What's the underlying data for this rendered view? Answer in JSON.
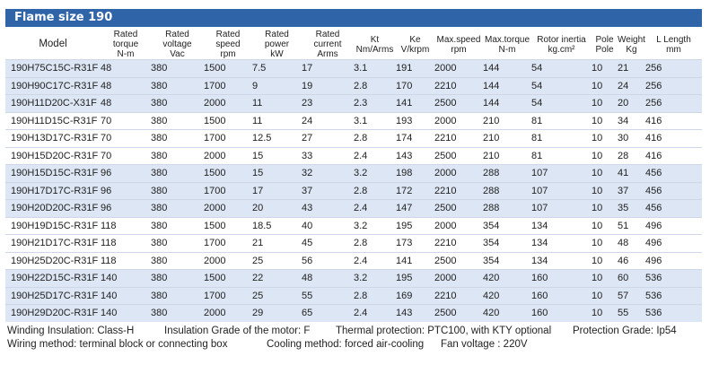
{
  "title": "Flame size 190",
  "columns": [
    {
      "l1": "Model",
      "l2": ""
    },
    {
      "l1": "Rated torque",
      "l2": "N-m"
    },
    {
      "l1": "Rated voltage",
      "l2": "Vac"
    },
    {
      "l1": "Rated speed",
      "l2": "rpm"
    },
    {
      "l1": "Rated power",
      "l2": "kW"
    },
    {
      "l1": "Rated current",
      "l2": "Arms"
    },
    {
      "l1": "Kt",
      "l2": "Nm/Arms"
    },
    {
      "l1": "Ke",
      "l2": "V/krpm"
    },
    {
      "l1": "Max.speed",
      "l2": "rpm"
    },
    {
      "l1": "Max.torque",
      "l2": "N-m"
    },
    {
      "l1": "Rotor inertia",
      "l2": "kg.cm²"
    },
    {
      "l1": "Pole",
      "l2": "Pole"
    },
    {
      "l1": "Weight",
      "l2": "Kg"
    },
    {
      "l1": "L Length",
      "l2": "mm"
    }
  ],
  "rows": [
    [
      "190H75C15C-R31F",
      "48",
      "380",
      "1500",
      "7.5",
      "17",
      "3.1",
      "191",
      "2000",
      "144",
      "54",
      "10",
      "21",
      "256"
    ],
    [
      "190H90C17C-R31F",
      "48",
      "380",
      "1700",
      "9",
      "19",
      "2.8",
      "170",
      "2210",
      "144",
      "54",
      "10",
      "24",
      "256"
    ],
    [
      "190H11D20C-X31F",
      "48",
      "380",
      "2000",
      "11",
      "23",
      "2.3",
      "141",
      "2500",
      "144",
      "54",
      "10",
      "20",
      "256"
    ],
    [
      "190H11D15C-R31F",
      "70",
      "380",
      "1500",
      "11",
      "24",
      "3.1",
      "193",
      "2000",
      "210",
      "81",
      "10",
      "34",
      "416"
    ],
    [
      "190H13D17C-R31F",
      "70",
      "380",
      "1700",
      "12.5",
      "27",
      "2.8",
      "174",
      "2210",
      "210",
      "81",
      "10",
      "30",
      "416"
    ],
    [
      "190H15D20C-R31F",
      "70",
      "380",
      "2000",
      "15",
      "33",
      "2.4",
      "143",
      "2500",
      "210",
      "81",
      "10",
      "28",
      "416"
    ],
    [
      "190H15D15C-R31F",
      "96",
      "380",
      "1500",
      "15",
      "32",
      "3.2",
      "198",
      "2000",
      "288",
      "107",
      "10",
      "41",
      "456"
    ],
    [
      "190H17D17C-R31F",
      "96",
      "380",
      "1700",
      "17",
      "37",
      "2.8",
      "172",
      "2210",
      "288",
      "107",
      "10",
      "37",
      "456"
    ],
    [
      "190H20D20C-R31F",
      "96",
      "380",
      "2000",
      "20",
      "43",
      "2.4",
      "147",
      "2500",
      "288",
      "107",
      "10",
      "35",
      "456"
    ],
    [
      "190H19D15C-R31F",
      "118",
      "380",
      "1500",
      "18.5",
      "40",
      "3.2",
      "195",
      "2000",
      "354",
      "134",
      "10",
      "51",
      "496"
    ],
    [
      "190H21D17C-R31F",
      "118",
      "380",
      "1700",
      "21",
      "45",
      "2.8",
      "173",
      "2210",
      "354",
      "134",
      "10",
      "48",
      "496"
    ],
    [
      "190H25D20C-R31F",
      "118",
      "380",
      "2000",
      "25",
      "56",
      "2.4",
      "141",
      "2500",
      "354",
      "134",
      "10",
      "46",
      "496"
    ],
    [
      "190H22D15C-R31F",
      "140",
      "380",
      "1500",
      "22",
      "48",
      "3.2",
      "195",
      "2000",
      "420",
      "160",
      "10",
      "60",
      "536"
    ],
    [
      "190H25D17C-R31F",
      "140",
      "380",
      "1700",
      "25",
      "55",
      "2.8",
      "169",
      "2210",
      "420",
      "160",
      "10",
      "57",
      "536"
    ],
    [
      "190H29D20C-R31F",
      "140",
      "380",
      "2000",
      "29",
      "65",
      "2.4",
      "143",
      "2500",
      "420",
      "160",
      "10",
      "55",
      "536"
    ]
  ],
  "footer": {
    "line1": {
      "insulation": "Winding Insulation: Class-H",
      "grade": "Insulation Grade of the motor: F",
      "thermal": "Thermal protection: PTC100, with KTY optional",
      "protection": "Protection Grade: Ip54"
    },
    "line2": {
      "wiring": "Wiring method: terminal block or connecting box",
      "cooling": "Cooling method: forced air-cooling",
      "fan": "Fan voltage : 220V"
    }
  }
}
